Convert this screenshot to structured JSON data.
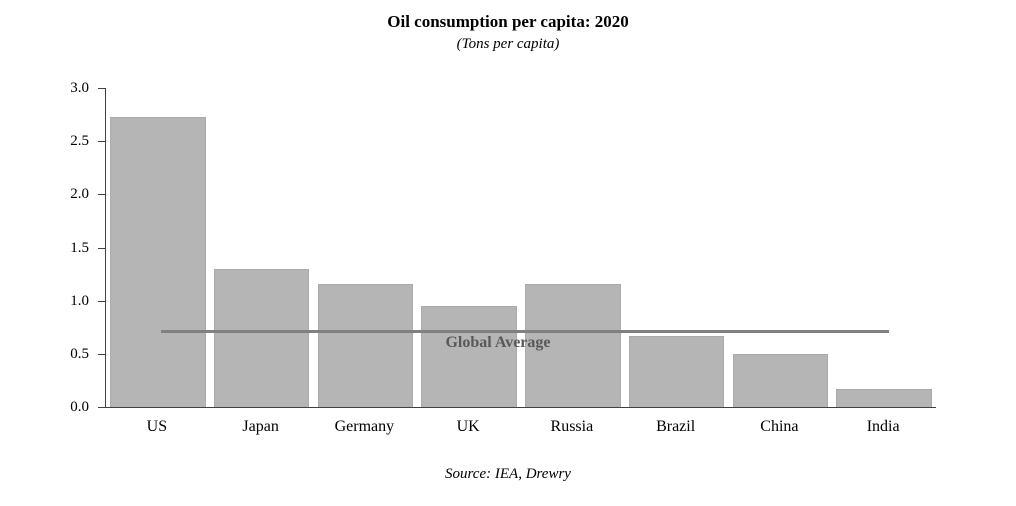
{
  "chart_data": {
    "type": "bar",
    "title": "Oil consumption per capita: 2020",
    "subtitle": "(Tons per capita)",
    "categories": [
      "US",
      "Japan",
      "Germany",
      "UK",
      "Russia",
      "Brazil",
      "China",
      "India"
    ],
    "values": [
      2.73,
      1.3,
      1.16,
      0.95,
      1.16,
      0.67,
      0.5,
      0.17
    ],
    "xlabel": "",
    "ylabel": "",
    "ylim": [
      0,
      3.0
    ],
    "ytick_labels": [
      "3.0",
      "2.5",
      "2.0",
      "1.5",
      "1.0",
      "0.5",
      "0.0"
    ],
    "grid": false,
    "legend": "none",
    "reference_line": {
      "label": "Global Average",
      "value": 0.7
    },
    "colors": {
      "bar": "#b5b5b5",
      "reference_line": "#808080",
      "axis": "#404040"
    },
    "source": "Source: IEA, Drewry"
  }
}
